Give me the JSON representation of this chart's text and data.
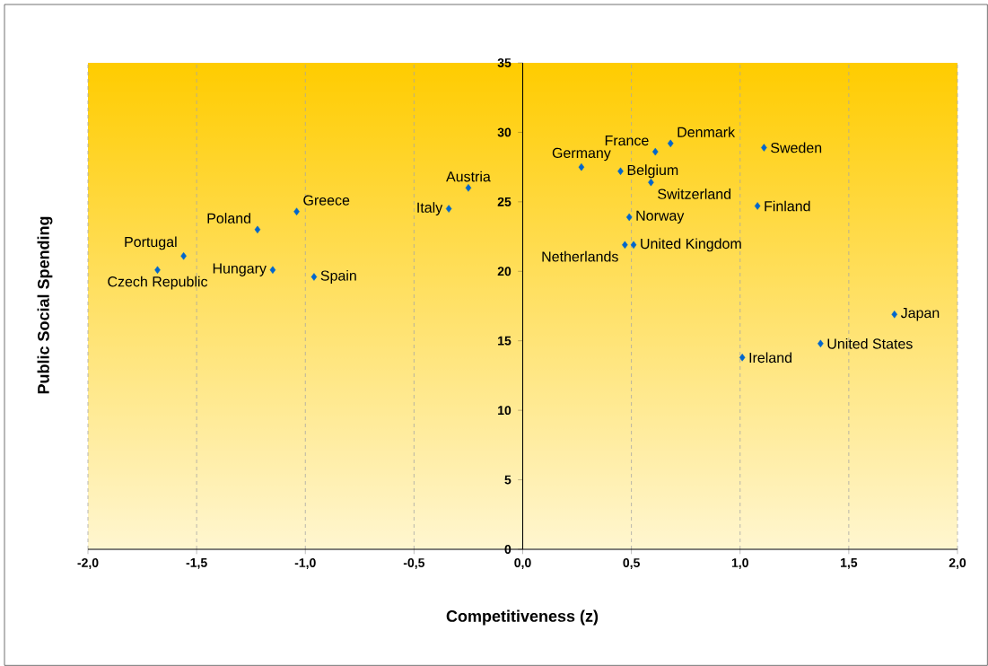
{
  "chart_data": {
    "type": "scatter",
    "xlabel": "Competitiveness (z)",
    "ylabel": "Public Social Spending",
    "x": [
      -1.68,
      -1.56,
      -1.22,
      -1.04,
      -1.15,
      -0.96,
      -0.34,
      -0.25,
      0.27,
      0.45,
      0.61,
      0.68,
      0.59,
      1.11,
      1.08,
      0.49,
      0.47,
      0.51,
      1.71,
      1.37,
      1.01
    ],
    "values": [
      20.1,
      21.1,
      23.0,
      24.3,
      20.1,
      19.6,
      24.5,
      26.0,
      27.5,
      27.2,
      28.6,
      29.2,
      26.4,
      28.9,
      24.7,
      23.9,
      21.9,
      21.9,
      16.9,
      14.8,
      13.8
    ],
    "color": "#0066cc",
    "marker": "diamond",
    "grid": "x",
    "xlim": [
      -2,
      2
    ],
    "ylim": [
      0,
      35
    ],
    "xticks": [
      {
        "value": -2,
        "label": "-2,0"
      },
      {
        "value": -1.5,
        "label": "-1,5"
      },
      {
        "value": -1,
        "label": "-1,0"
      },
      {
        "value": -0.5,
        "label": "-0,5"
      },
      {
        "value": 0,
        "label": "0,0"
      },
      {
        "value": 0.5,
        "label": "0,5"
      },
      {
        "value": 1,
        "label": "1,0"
      },
      {
        "value": 1.5,
        "label": "1,5"
      },
      {
        "value": 2,
        "label": "2,0"
      }
    ],
    "yticks": [
      0,
      5,
      10,
      15,
      20,
      25,
      30,
      35
    ],
    "annotations": [
      {
        "text": "Czech Republic",
        "x": -1.68,
        "y": 20.1
      },
      {
        "text": "Portugal",
        "x": -1.56,
        "y": 21.1
      },
      {
        "text": "Poland",
        "x": -1.22,
        "y": 23.0
      },
      {
        "text": "Greece",
        "x": -1.04,
        "y": 24.3
      },
      {
        "text": "Hungary",
        "x": -1.15,
        "y": 20.1
      },
      {
        "text": "Spain",
        "x": -0.96,
        "y": 19.6
      },
      {
        "text": "Italy",
        "x": -0.34,
        "y": 24.5
      },
      {
        "text": "Austria",
        "x": -0.25,
        "y": 26.0
      },
      {
        "text": "Germany",
        "x": 0.27,
        "y": 27.5
      },
      {
        "text": "Belgium",
        "x": 0.45,
        "y": 27.2
      },
      {
        "text": "France",
        "x": 0.61,
        "y": 28.6
      },
      {
        "text": "Denmark",
        "x": 0.68,
        "y": 29.2
      },
      {
        "text": "Switzerland",
        "x": 0.59,
        "y": 26.4
      },
      {
        "text": "Sweden",
        "x": 1.11,
        "y": 28.9
      },
      {
        "text": "Finland",
        "x": 1.08,
        "y": 24.7
      },
      {
        "text": "Norway",
        "x": 0.49,
        "y": 23.9
      },
      {
        "text": "Netherlands",
        "x": 0.47,
        "y": 21.9
      },
      {
        "text": "United Kingdom",
        "x": 0.51,
        "y": 21.9
      },
      {
        "text": "Japan",
        "x": 1.71,
        "y": 16.9
      },
      {
        "text": "United States",
        "x": 1.37,
        "y": 14.8
      },
      {
        "text": "Ireland",
        "x": 1.01,
        "y": 13.8
      }
    ]
  }
}
